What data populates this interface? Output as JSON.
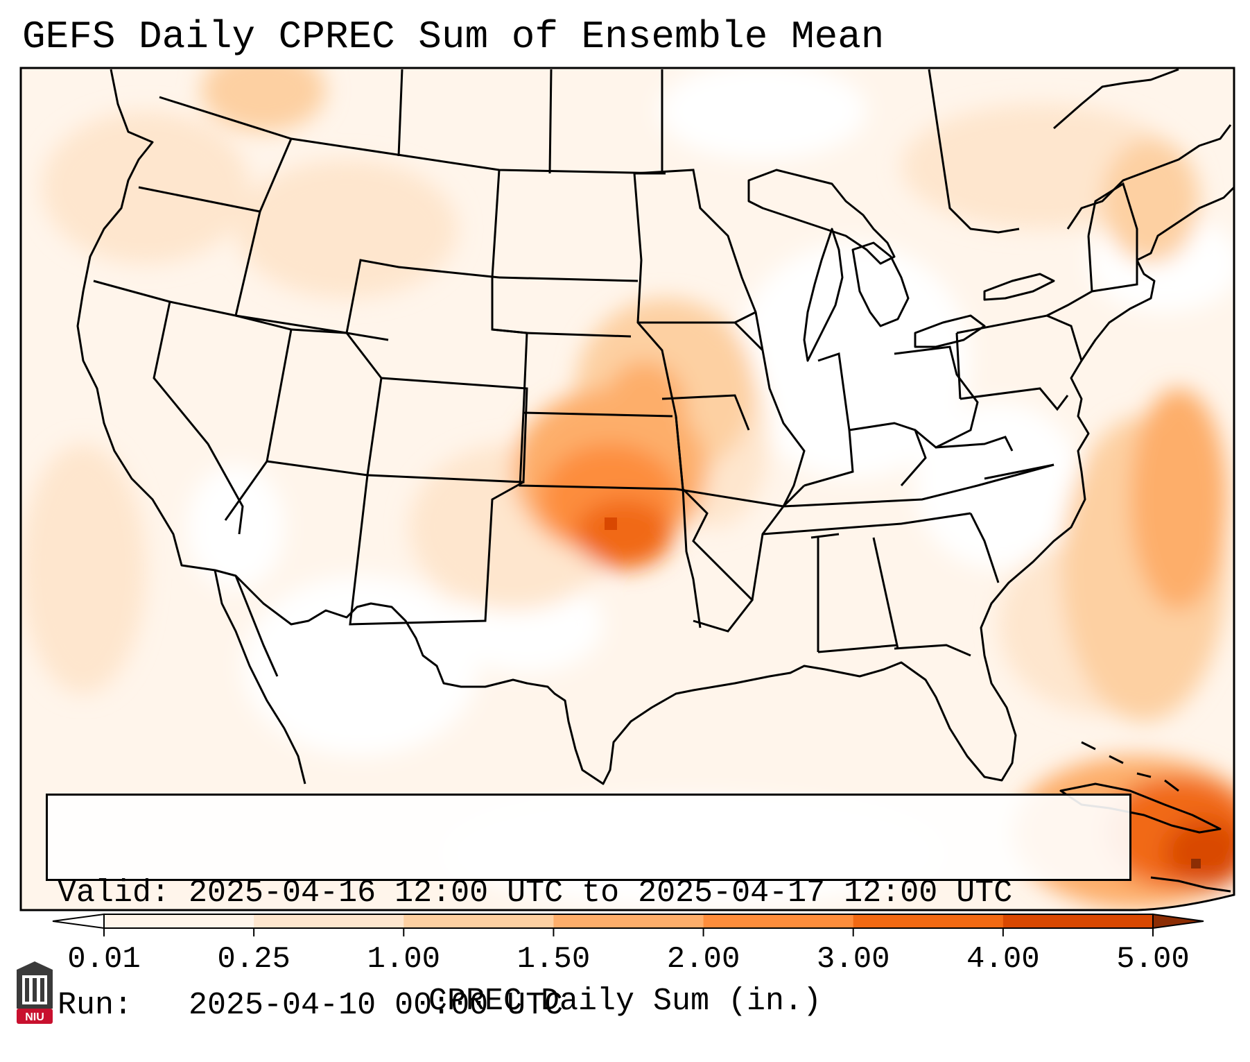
{
  "title": "GEFS Daily CPREC Sum of Ensemble Mean",
  "info": {
    "valid": "Valid: 2025-04-16 12:00 UTC to 2025-04-17 12:00 UTC",
    "run": "Run:   2025-04-10 00:00 UTC"
  },
  "colorbar": {
    "label": "CPREC Daily Sum (in.)",
    "ticks": [
      "0.01",
      "0.25",
      "1.00",
      "1.50",
      "2.00",
      "3.00",
      "4.00",
      "5.00"
    ],
    "colors": [
      "#fff5eb",
      "#fee6ce",
      "#fdd0a2",
      "#fdae6b",
      "#fd8d3c",
      "#f16913",
      "#d94801",
      "#8c2d04"
    ],
    "under_color": "#ffffff"
  },
  "logo": {
    "text": "NIU",
    "color": "#c8102e"
  },
  "map": {
    "precip_cells": [
      {
        "value": 0.05,
        "lon": -124,
        "lat": 47
      },
      {
        "value": 0.5,
        "lon": -117,
        "lat": 49
      },
      {
        "value": 0.1,
        "lon": -110,
        "lat": 44
      },
      {
        "value": 0.3,
        "lon": -108,
        "lat": 41
      },
      {
        "value": 1.1,
        "lon": -97,
        "lat": 42
      },
      {
        "value": 0.5,
        "lon": -93,
        "lat": 41
      },
      {
        "value": 1.6,
        "lon": -96.5,
        "lat": 38.5
      },
      {
        "value": 1.5,
        "lon": -97.5,
        "lat": 37
      },
      {
        "value": 2.6,
        "lon": -96,
        "lat": 35.5
      },
      {
        "value": 3.2,
        "lon": -96.5,
        "lat": 35.8
      },
      {
        "value": 0.6,
        "lon": -93,
        "lat": 37
      },
      {
        "value": 0.3,
        "lon": -92,
        "lat": 34
      },
      {
        "value": 0.2,
        "lon": -87,
        "lat": 33
      },
      {
        "value": 0.3,
        "lon": -72,
        "lat": 43
      },
      {
        "value": 0.6,
        "lon": -69,
        "lat": 46
      },
      {
        "value": 1.5,
        "lon": -66,
        "lat": 35
      },
      {
        "value": 2.0,
        "lon": -65,
        "lat": 31
      },
      {
        "value": 1.4,
        "lon": -69,
        "lat": 28
      },
      {
        "value": 2.5,
        "lon": -72,
        "lat": 21
      },
      {
        "value": 4.5,
        "lon": -74,
        "lat": 20
      }
    ]
  }
}
